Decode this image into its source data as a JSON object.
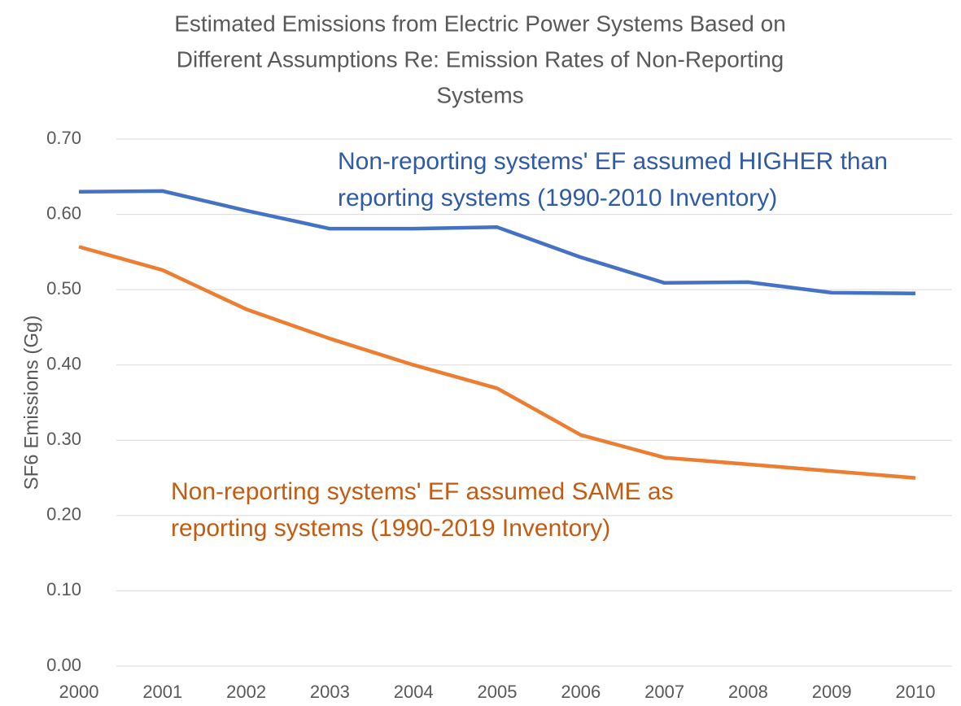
{
  "chart_data": {
    "type": "line",
    "title": [
      "Estimated Emissions from Electric Power Systems Based on",
      "Different Assumptions Re: Emission Rates of Non-Reporting",
      "Systems"
    ],
    "y_label": "SF6 Emissions (Gg)",
    "categories": [
      "2000",
      "2001",
      "2002",
      "2003",
      "2004",
      "2005",
      "2006",
      "2007",
      "2008",
      "2009",
      "2010"
    ],
    "series": [
      {
        "color": "#4472c4",
        "values": [
          0.63,
          0.631,
          0.605,
          0.581,
          0.581,
          0.583,
          0.543,
          0.509,
          0.51,
          0.496,
          0.495
        ]
      },
      {
        "color": "#ed7d31",
        "values": [
          0.557,
          0.526,
          0.474,
          0.435,
          0.4,
          0.369,
          0.307,
          0.277,
          0.268,
          0.259,
          0.25
        ]
      }
    ],
    "annotations": [
      {
        "color": "#2e5aa8",
        "lines": [
          "Non-reporting systems' EF assumed HIGHER than",
          "reporting systems (1990-2010 Inventory)"
        ]
      },
      {
        "color": "#c55a11",
        "lines": [
          "Non-reporting systems' EF assumed SAME as",
          "reporting systems (1990-2019 Inventory)"
        ]
      }
    ],
    "ylim": [
      0,
      0.7
    ],
    "yticks": [
      {
        "value": 0,
        "label": "0.00"
      },
      {
        "value": 0.1,
        "label": "0.10"
      },
      {
        "value": 0.2,
        "label": "0.20"
      },
      {
        "value": 0.3,
        "label": "0.30"
      },
      {
        "value": 0.4,
        "label": "0.40"
      },
      {
        "value": 0.5,
        "label": "0.50"
      },
      {
        "value": 0.6,
        "label": "0.60"
      },
      {
        "value": 0.7,
        "label": "0.70"
      }
    ],
    "grid": true
  }
}
